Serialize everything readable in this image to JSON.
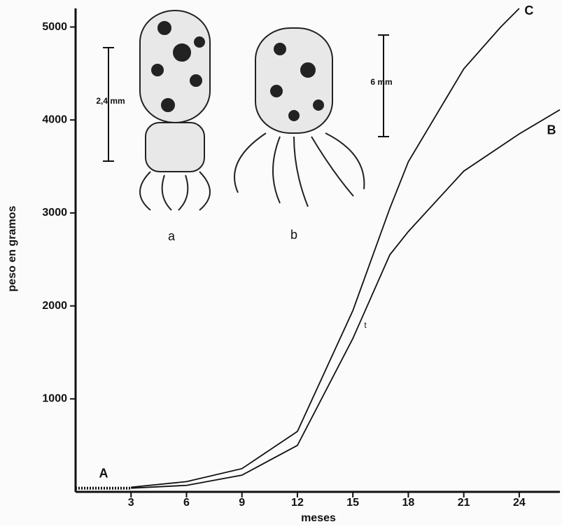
{
  "chart_data": {
    "type": "line",
    "xlabel": "meses",
    "ylabel": "peso en   gramos",
    "xlim": [
      0,
      26.2
    ],
    "ylim": [
      0,
      5200
    ],
    "xticks": [
      3,
      6,
      9,
      12,
      15,
      18,
      21,
      24
    ],
    "yticks": [
      1000,
      2000,
      3000,
      4000,
      5000
    ],
    "series": [
      {
        "name": "A",
        "color": "#111111",
        "dash": "2 2",
        "x": [
          0,
          3
        ],
        "values": [
          40,
          40
        ]
      },
      {
        "name": "B",
        "color": "#111111",
        "x": [
          3,
          6,
          9,
          12,
          15,
          17,
          18,
          21,
          24,
          26.2
        ],
        "values": [
          40,
          70,
          180,
          500,
          1650,
          2550,
          2800,
          3450,
          3850,
          4110
        ]
      },
      {
        "name": "C",
        "color": "#111111",
        "x": [
          3,
          6,
          9,
          12,
          15,
          17,
          18,
          21,
          23,
          24
        ],
        "values": [
          50,
          110,
          250,
          650,
          1950,
          3050,
          3550,
          4550,
          5000,
          5200
        ]
      }
    ],
    "annotations": [
      "a",
      "b",
      "2,4 mm",
      "6 mm",
      "t"
    ]
  }
}
